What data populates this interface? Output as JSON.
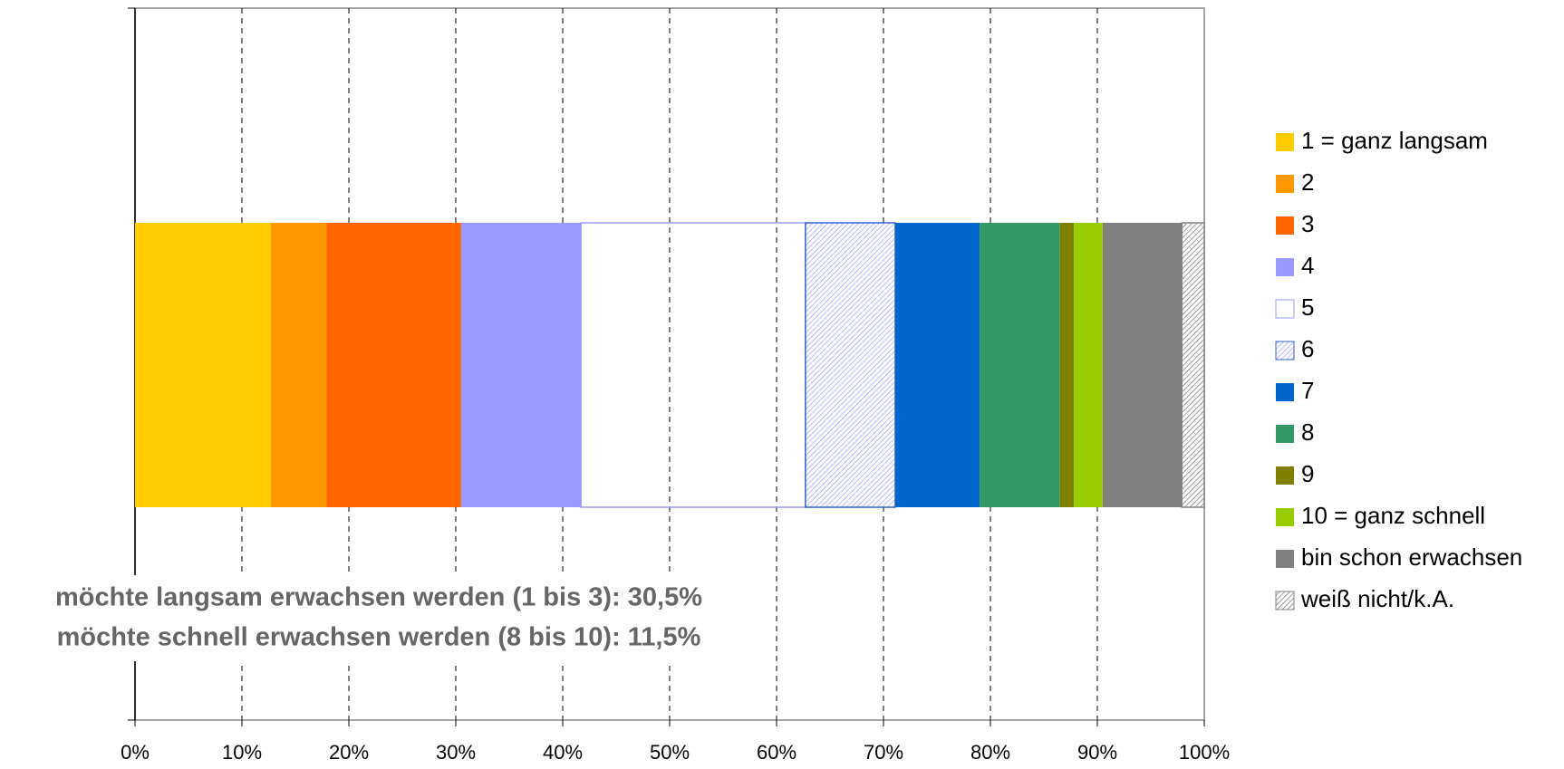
{
  "chart_data": {
    "type": "stacked-bar-horizontal",
    "categories": [
      null
    ],
    "series": [
      {
        "name": "1 = ganz langsam",
        "color": "#FFCC00",
        "values": [
          12.7
        ]
      },
      {
        "name": "2",
        "color": "#FF9900",
        "values": [
          5.2
        ]
      },
      {
        "name": "3",
        "color": "#FF6600",
        "values": [
          12.6
        ]
      },
      {
        "name": "4",
        "color": "#9999FF",
        "values": [
          11.2
        ]
      },
      {
        "name": "5",
        "color": "#9999FF",
        "hatch": true,
        "values": [
          21.0
        ]
      },
      {
        "name": "6",
        "color": "#3366CC",
        "hatch": true,
        "values": [
          8.4
        ]
      },
      {
        "name": "7",
        "color": "#0066CC",
        "values": [
          7.9
        ]
      },
      {
        "name": "8",
        "color": "#339966",
        "values": [
          7.5
        ]
      },
      {
        "name": "9",
        "color": "#808000",
        "values": [
          1.3
        ]
      },
      {
        "name": "10 = ganz schnell",
        "color": "#99CC00",
        "values": [
          2.7
        ]
      },
      {
        "name": "bin schon erwachsen",
        "color": "#808080",
        "values": [
          7.4
        ]
      },
      {
        "name": "weiß nicht/k.A.",
        "color": "#808080",
        "hatch": true,
        "values": [
          2.1
        ]
      }
    ],
    "xlim": [
      0,
      100
    ],
    "xticks": [
      {
        "value": 0,
        "label": "0%"
      },
      {
        "value": 10,
        "label": "10%"
      },
      {
        "value": 20,
        "label": "20%"
      },
      {
        "value": 30,
        "label": "30%"
      },
      {
        "value": 40,
        "label": "40%"
      },
      {
        "value": 50,
        "label": "50%"
      },
      {
        "value": 60,
        "label": "60%"
      },
      {
        "value": 70,
        "label": "70%"
      },
      {
        "value": 80,
        "label": "80%"
      },
      {
        "value": 90,
        "label": "90%"
      },
      {
        "value": 100,
        "label": "100%"
      }
    ],
    "grid": true,
    "legend": "right",
    "annotations": [
      "möchte langsam erwachsen werden (1 bis 3): 30,5%",
      "möchte schnell erwachsen werden (8 bis 10): 11,5%"
    ]
  }
}
